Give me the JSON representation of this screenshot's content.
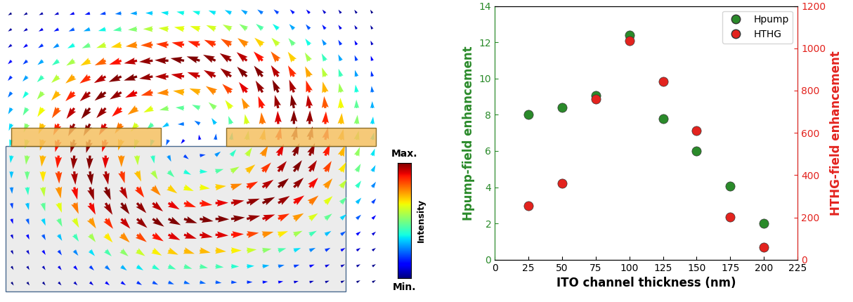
{
  "chart_data": {
    "type": "scatter",
    "xlabel": "ITO channel thickness (nm)",
    "ylabel": "Hpump-field enhancement",
    "y2label": "HTHG-field enhancement",
    "x": [
      25,
      50,
      75,
      100,
      125,
      150,
      175,
      200
    ],
    "xlim": [
      0,
      225
    ],
    "xticks": [
      0,
      25,
      50,
      75,
      100,
      125,
      150,
      175,
      200,
      225
    ],
    "ylim": [
      0,
      14
    ],
    "yticks": [
      0,
      2,
      4,
      6,
      8,
      10,
      12,
      14
    ],
    "y2lim": [
      0,
      1200
    ],
    "y2ticks": [
      0,
      200,
      400,
      600,
      800,
      1000,
      1200
    ],
    "legend": "upper right",
    "series": [
      {
        "name": "Hpump",
        "color": "#2a8a2a",
        "marker": "o",
        "values": [
          8.0,
          8.4,
          9.05,
          12.4,
          7.8,
          6.0,
          4.05,
          2.0
        ]
      },
      {
        "name": "HTHG",
        "color": "#e3231e",
        "marker": "o",
        "axis": "y2",
        "values": [
          255,
          362,
          760,
          1035,
          843,
          612,
          203,
          58
        ]
      }
    ]
  },
  "diagram": {
    "colorbar": {
      "max_label": "Max.",
      "min_label": "Min.",
      "title": "Intensity"
    }
  }
}
